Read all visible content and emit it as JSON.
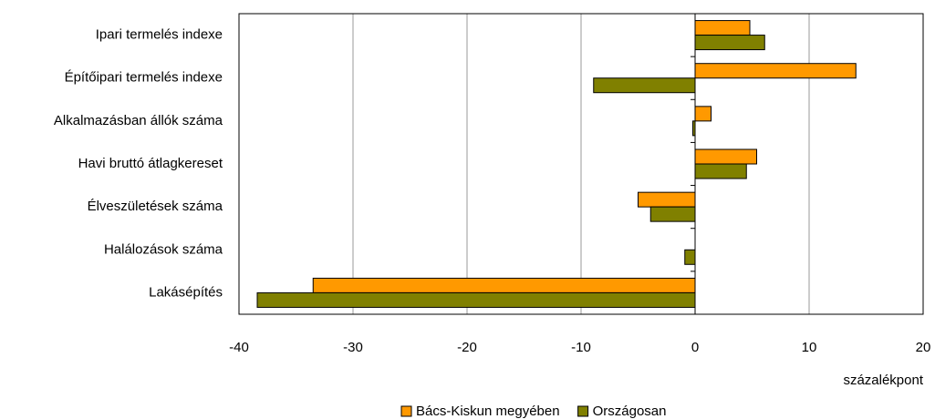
{
  "chart_data": {
    "type": "hbar",
    "categories": [
      "Ipari termelés indexe",
      "Építőipari termelés indexe",
      "Alkalmazásban állók száma",
      "Havi bruttó átlagkereset",
      "Élveszületések száma",
      "Halálozások száma",
      "Lakásépítés"
    ],
    "series": [
      {
        "name": "Bács-Kiskun megyében",
        "color": "#ff9900",
        "values": [
          4.8,
          14.1,
          1.4,
          5.4,
          -5.0,
          0,
          -33.5
        ]
      },
      {
        "name": "Országosan",
        "color": "#808000",
        "values": [
          6.1,
          -8.9,
          -0.2,
          4.5,
          -3.9,
          -0.9,
          -38.4
        ]
      }
    ],
    "xlim": [
      -40,
      20
    ],
    "xticks": [
      -40,
      -30,
      -20,
      -10,
      0,
      10,
      20
    ],
    "x_label": "százalékpont",
    "grid": true,
    "legend": "bottom"
  }
}
